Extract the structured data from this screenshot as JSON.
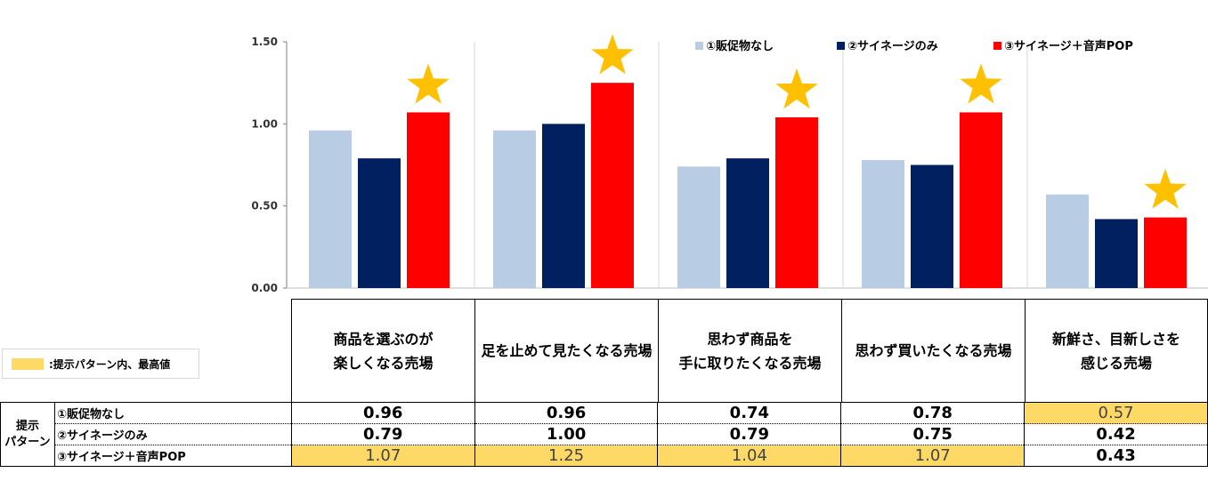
{
  "chart_data": {
    "type": "bar",
    "categories": [
      "商品を選ぶのが\n楽しくなる売場",
      "足を止めて見たくなる売場",
      "思わず商品を\n手に取りたくなる売場",
      "思わず買いたくなる売場",
      "新鮮さ、目新しさを\n感じる売場"
    ],
    "series": [
      {
        "name": "①販促物なし",
        "values": [
          0.96,
          0.96,
          0.74,
          0.78,
          0.57
        ],
        "color": "#b8cce4"
      },
      {
        "name": "②サイネージのみ",
        "values": [
          0.79,
          1.0,
          0.79,
          0.75,
          0.42
        ],
        "color": "#002060"
      },
      {
        "name": "③サイネージ＋音声POP",
        "values": [
          1.07,
          1.25,
          1.04,
          1.07,
          0.43
        ],
        "color": "#ff0000"
      }
    ],
    "ylim": [
      0,
      1.5
    ],
    "yticks": [
      "0.00",
      "0.50",
      "1.00",
      "1.50"
    ],
    "ytick_values": [
      0,
      0.5,
      1.0,
      1.5
    ],
    "legend_position": "top-right",
    "star_marks": [
      2,
      2,
      2,
      2,
      2
    ],
    "star_color": "#ffc000"
  },
  "highlight_legend": {
    "label": ":提示パターン内、最高値",
    "color": "#ffd966"
  },
  "table": {
    "group_label": "提示\nパターン",
    "rows": [
      {
        "label": "①販促物なし",
        "values": [
          "0.96",
          "0.96",
          "0.74",
          "0.78",
          "0.57"
        ],
        "highlight": [
          false,
          false,
          false,
          false,
          true
        ]
      },
      {
        "label": "②サイネージのみ",
        "values": [
          "0.79",
          "1.00",
          "0.79",
          "0.75",
          "0.42"
        ],
        "highlight": [
          false,
          false,
          false,
          false,
          false
        ]
      },
      {
        "label": "③サイネージ＋音声POP",
        "values": [
          "1.07",
          "1.25",
          "1.04",
          "1.07",
          "0.43"
        ],
        "highlight": [
          true,
          true,
          true,
          true,
          false
        ]
      }
    ]
  }
}
